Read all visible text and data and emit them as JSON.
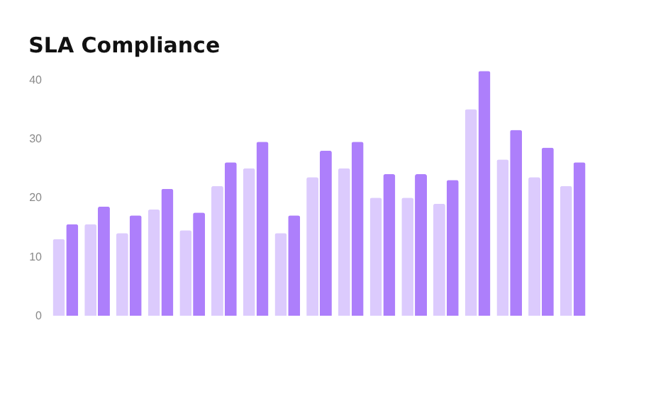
{
  "chart_data": {
    "type": "bar",
    "title": "SLA Compliance",
    "categories": [
      null,
      null,
      null,
      null,
      null,
      null,
      null,
      null,
      null,
      null,
      null,
      null,
      null,
      null,
      null,
      null,
      null
    ],
    "series": [
      {
        "color": "#dccbfd",
        "values": [
          13,
          15.5,
          14,
          18,
          14.5,
          22,
          25,
          14,
          23.5,
          25,
          20,
          20,
          19,
          35,
          26.5,
          23.5,
          22
        ]
      },
      {
        "color": "#ad7ffb",
        "values": [
          15.5,
          18.5,
          17,
          21.5,
          17.5,
          26,
          29.5,
          17,
          28,
          29.5,
          24,
          24,
          23,
          41.5,
          31.5,
          28.5,
          26
        ]
      }
    ],
    "ylim": [
      0,
      42
    ],
    "yticks": [
      0,
      10,
      20,
      30,
      40
    ],
    "grid": false,
    "tick_labels": "y"
  }
}
